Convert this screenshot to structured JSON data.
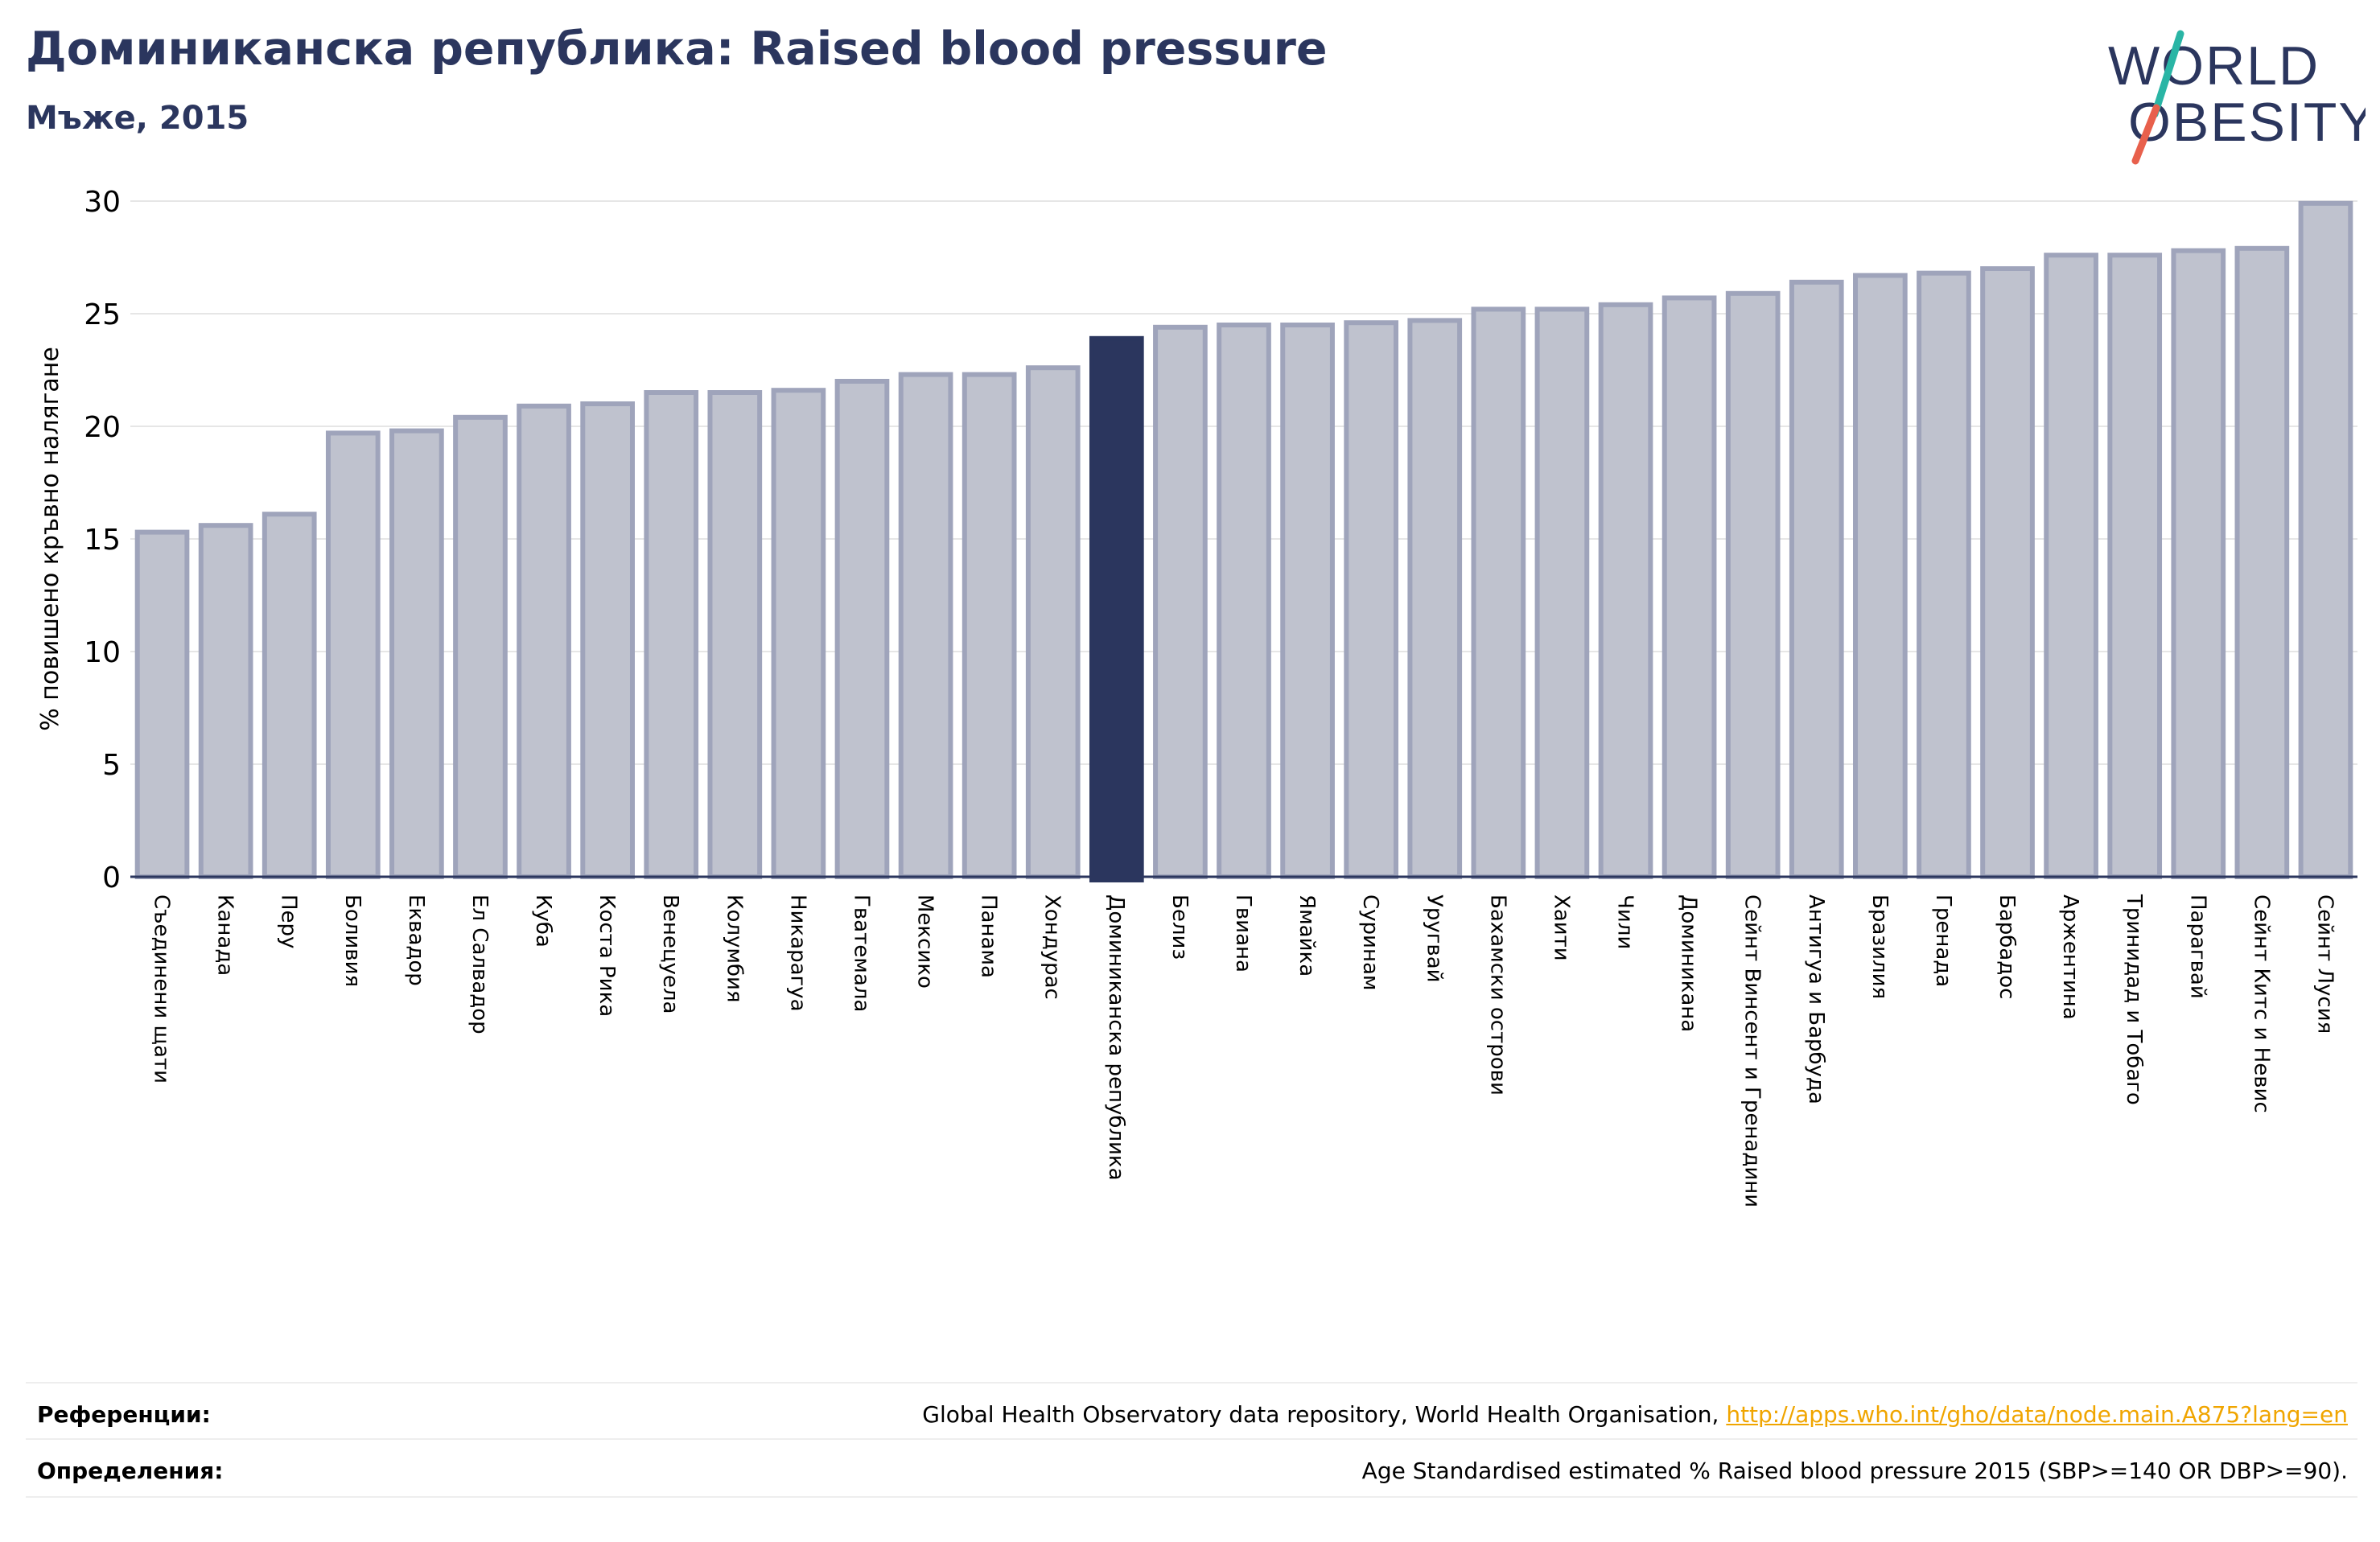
{
  "header": {
    "title": "Доминиканска република: Raised blood pressure",
    "subtitle": "Мъже, 2015"
  },
  "logo": {
    "line1": "WORLD",
    "line2": "OBESITY",
    "text_color": "#2b365e",
    "slash_top_color": "#2ab5a5",
    "slash_bottom_color": "#e8604c"
  },
  "colors": {
    "bar_fill": "#bfc2ce",
    "bar_stroke": "#9fa4bb",
    "highlight": "#2b365e",
    "grid": "#e6e6e6",
    "axis": "#2b365e"
  },
  "chart_data": {
    "type": "bar",
    "title": "",
    "xlabel": "",
    "ylabel": "% повишено кръвно налягане",
    "ylim": [
      0,
      30
    ],
    "yticks": [
      0,
      5,
      10,
      15,
      20,
      25,
      30
    ],
    "grid": true,
    "highlight_category": "Доминиканска република",
    "categories": [
      "Съединени щати",
      "Канада",
      "Перу",
      "Боливия",
      "Еквадор",
      "Ел Салвадор",
      "Куба",
      "Коста Рика",
      "Венецуела",
      "Колумбия",
      "Никарагуа",
      "Гватемала",
      "Мексико",
      "Панама",
      "Хондурас",
      "Доминиканска република",
      "Белиз",
      "Гвиана",
      "Ямайка",
      "Суринам",
      "Уругвай",
      "Бахамски острови",
      "Хаити",
      "Чили",
      "Доминикана",
      "Сейнт Винсент и Гренадини",
      "Антигуа и Барбуда",
      "Бразилия",
      "Гренада",
      "Барбадос",
      "Аржентина",
      "Тринидад и Тобаго",
      "Парагвай",
      "Сейнт Китс и Невис",
      "Сейнт Лусия"
    ],
    "values": [
      15.3,
      15.6,
      16.1,
      19.7,
      19.8,
      20.4,
      20.9,
      21.0,
      21.5,
      21.5,
      21.6,
      22.0,
      22.3,
      22.3,
      22.6,
      23.9,
      24.4,
      24.5,
      24.5,
      24.6,
      24.7,
      25.2,
      25.2,
      25.4,
      25.7,
      25.9,
      26.4,
      26.7,
      26.8,
      27.0,
      27.6,
      27.6,
      27.8,
      27.9,
      29.9
    ]
  },
  "footer": {
    "references_label": "Референции:",
    "references_text": "Global Health Observatory data repository, World Health Organisation, ",
    "references_link": "http://apps.who.int/gho/data/node.main.A875?lang=en",
    "definitions_label": "Определения:",
    "definitions_text": "Age Standardised estimated % Raised blood pressure 2015 (SBP>=140 OR DBP>=90)."
  }
}
